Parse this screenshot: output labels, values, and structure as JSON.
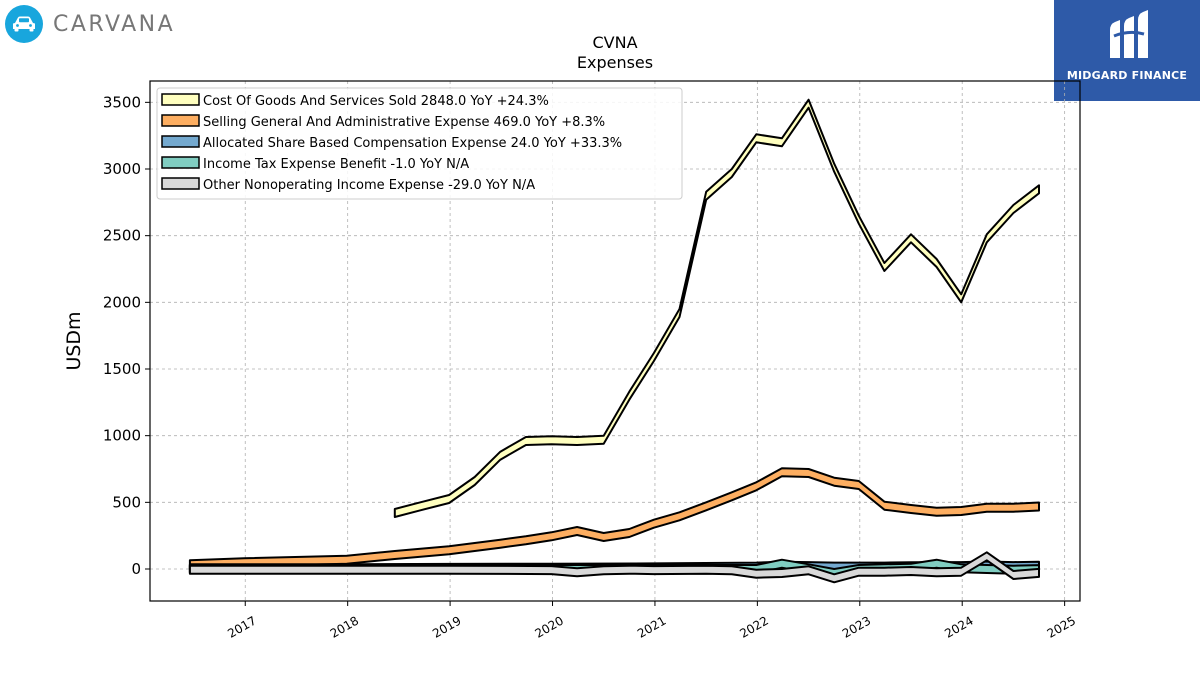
{
  "brand": {
    "name": "CARVANA",
    "logo_icon": "car-icon",
    "color": "#18a6dd"
  },
  "partner": {
    "name": "MIDGARD FINANCE",
    "logo_icon": "midgard-monogram-icon",
    "color": "#2e5aa8"
  },
  "chart_data": {
    "type": "area",
    "title": "CVNA",
    "subtitle": "Expenses",
    "xlabel": "",
    "ylabel": "USDm",
    "ylim": [
      -240,
      3660
    ],
    "xlim": [
      2016.07,
      2025.15
    ],
    "yticks": [
      0,
      500,
      1000,
      1500,
      2000,
      2500,
      3000,
      3500
    ],
    "xticks": [
      2017,
      2018,
      2019,
      2020,
      2021,
      2022,
      2023,
      2024,
      2025
    ],
    "grid": true,
    "legend_position": "top-left",
    "series": [
      {
        "name": "Cost Of Goods And Services Sold",
        "legend": "Cost Of Goods And Services Sold  2848.0 YoY +24.3%",
        "color": "#ffffbf",
        "x": [
          2018.46,
          2018.71,
          2018.99,
          2019.24,
          2019.49,
          2019.74,
          2019.99,
          2020.24,
          2020.5,
          2020.75,
          2020.99,
          2021.24,
          2021.5,
          2021.75,
          2021.99,
          2022.24,
          2022.5,
          2022.75,
          2022.99,
          2023.24,
          2023.5,
          2023.75,
          2023.99,
          2024.24,
          2024.5,
          2024.75
        ],
        "values": [
          420,
          470,
          525,
          660,
          850,
          960,
          965,
          960,
          970,
          1300,
          1590,
          1920,
          2800,
          2970,
          3230,
          3200,
          3490,
          3010,
          2620,
          2265,
          2480,
          2295,
          2030,
          2480,
          2700,
          2848
        ]
      },
      {
        "name": "Selling General And Administrative Expense",
        "legend": "Selling General And Administrative Expense  469.0 YoY +8.3%",
        "color": "#fdae61",
        "x": [
          2016.46,
          2016.99,
          2017.99,
          2018.46,
          2018.99,
          2019.24,
          2019.49,
          2019.74,
          2019.99,
          2020.24,
          2020.5,
          2020.75,
          2020.99,
          2021.24,
          2021.5,
          2021.75,
          2021.99,
          2022.24,
          2022.5,
          2022.75,
          2022.99,
          2023.24,
          2023.5,
          2023.75,
          2023.99,
          2024.24,
          2024.5,
          2024.75
        ],
        "values": [
          35,
          50,
          70,
          105,
          140,
          165,
          190,
          215,
          245,
          285,
          240,
          270,
          340,
          395,
          470,
          545,
          620,
          725,
          720,
          655,
          630,
          475,
          450,
          430,
          435,
          460,
          460,
          469
        ]
      },
      {
        "name": "Allocated Share Based Compensation Expense",
        "legend": "Allocated Share Based Compensation Expense  24.0 YoY +33.3%",
        "color": "#74a9cf",
        "x": [
          2016.46,
          2017.99,
          2018.99,
          2019.99,
          2020.99,
          2021.99,
          2022.24,
          2022.5,
          2022.75,
          2022.99,
          2023.24,
          2023.5,
          2023.75,
          2023.99,
          2024.24,
          2024.5,
          2024.75
        ],
        "values": [
          5,
          5,
          8,
          10,
          12,
          18,
          25,
          22,
          18,
          18,
          18,
          20,
          22,
          22,
          26,
          22,
          24
        ]
      },
      {
        "name": "Income Tax Expense Benefit",
        "legend": "Income Tax Expense Benefit  -1.0 YoY N/A",
        "color": "#80cdc1",
        "x": [
          2016.46,
          2017.99,
          2018.99,
          2019.99,
          2020.99,
          2021.99,
          2022.24,
          2022.5,
          2022.75,
          2022.99,
          2023.24,
          2023.5,
          2023.75,
          2023.99,
          2024.24,
          2024.5,
          2024.75
        ],
        "values": [
          0,
          0,
          0,
          0,
          0,
          0,
          40,
          5,
          -30,
          0,
          5,
          10,
          40,
          5,
          0,
          -5,
          -1
        ]
      },
      {
        "name": "Other Nonoperating Income Expense",
        "legend": "Other Nonoperating Income Expense  -29.0 YoY N/A",
        "color": "#d9d9d9",
        "x": [
          2016.46,
          2017.99,
          2018.99,
          2019.99,
          2020.24,
          2020.5,
          2020.75,
          2020.99,
          2021.5,
          2021.75,
          2021.99,
          2022.24,
          2022.5,
          2022.75,
          2022.99,
          2023.24,
          2023.5,
          2023.75,
          2023.99,
          2024.24,
          2024.5,
          2024.75
        ],
        "values": [
          -5,
          -5,
          -5,
          -8,
          -25,
          -10,
          -5,
          -8,
          -5,
          -10,
          -35,
          -30,
          -10,
          -70,
          -20,
          -20,
          -15,
          -25,
          -20,
          95,
          -45,
          -29
        ]
      }
    ]
  }
}
